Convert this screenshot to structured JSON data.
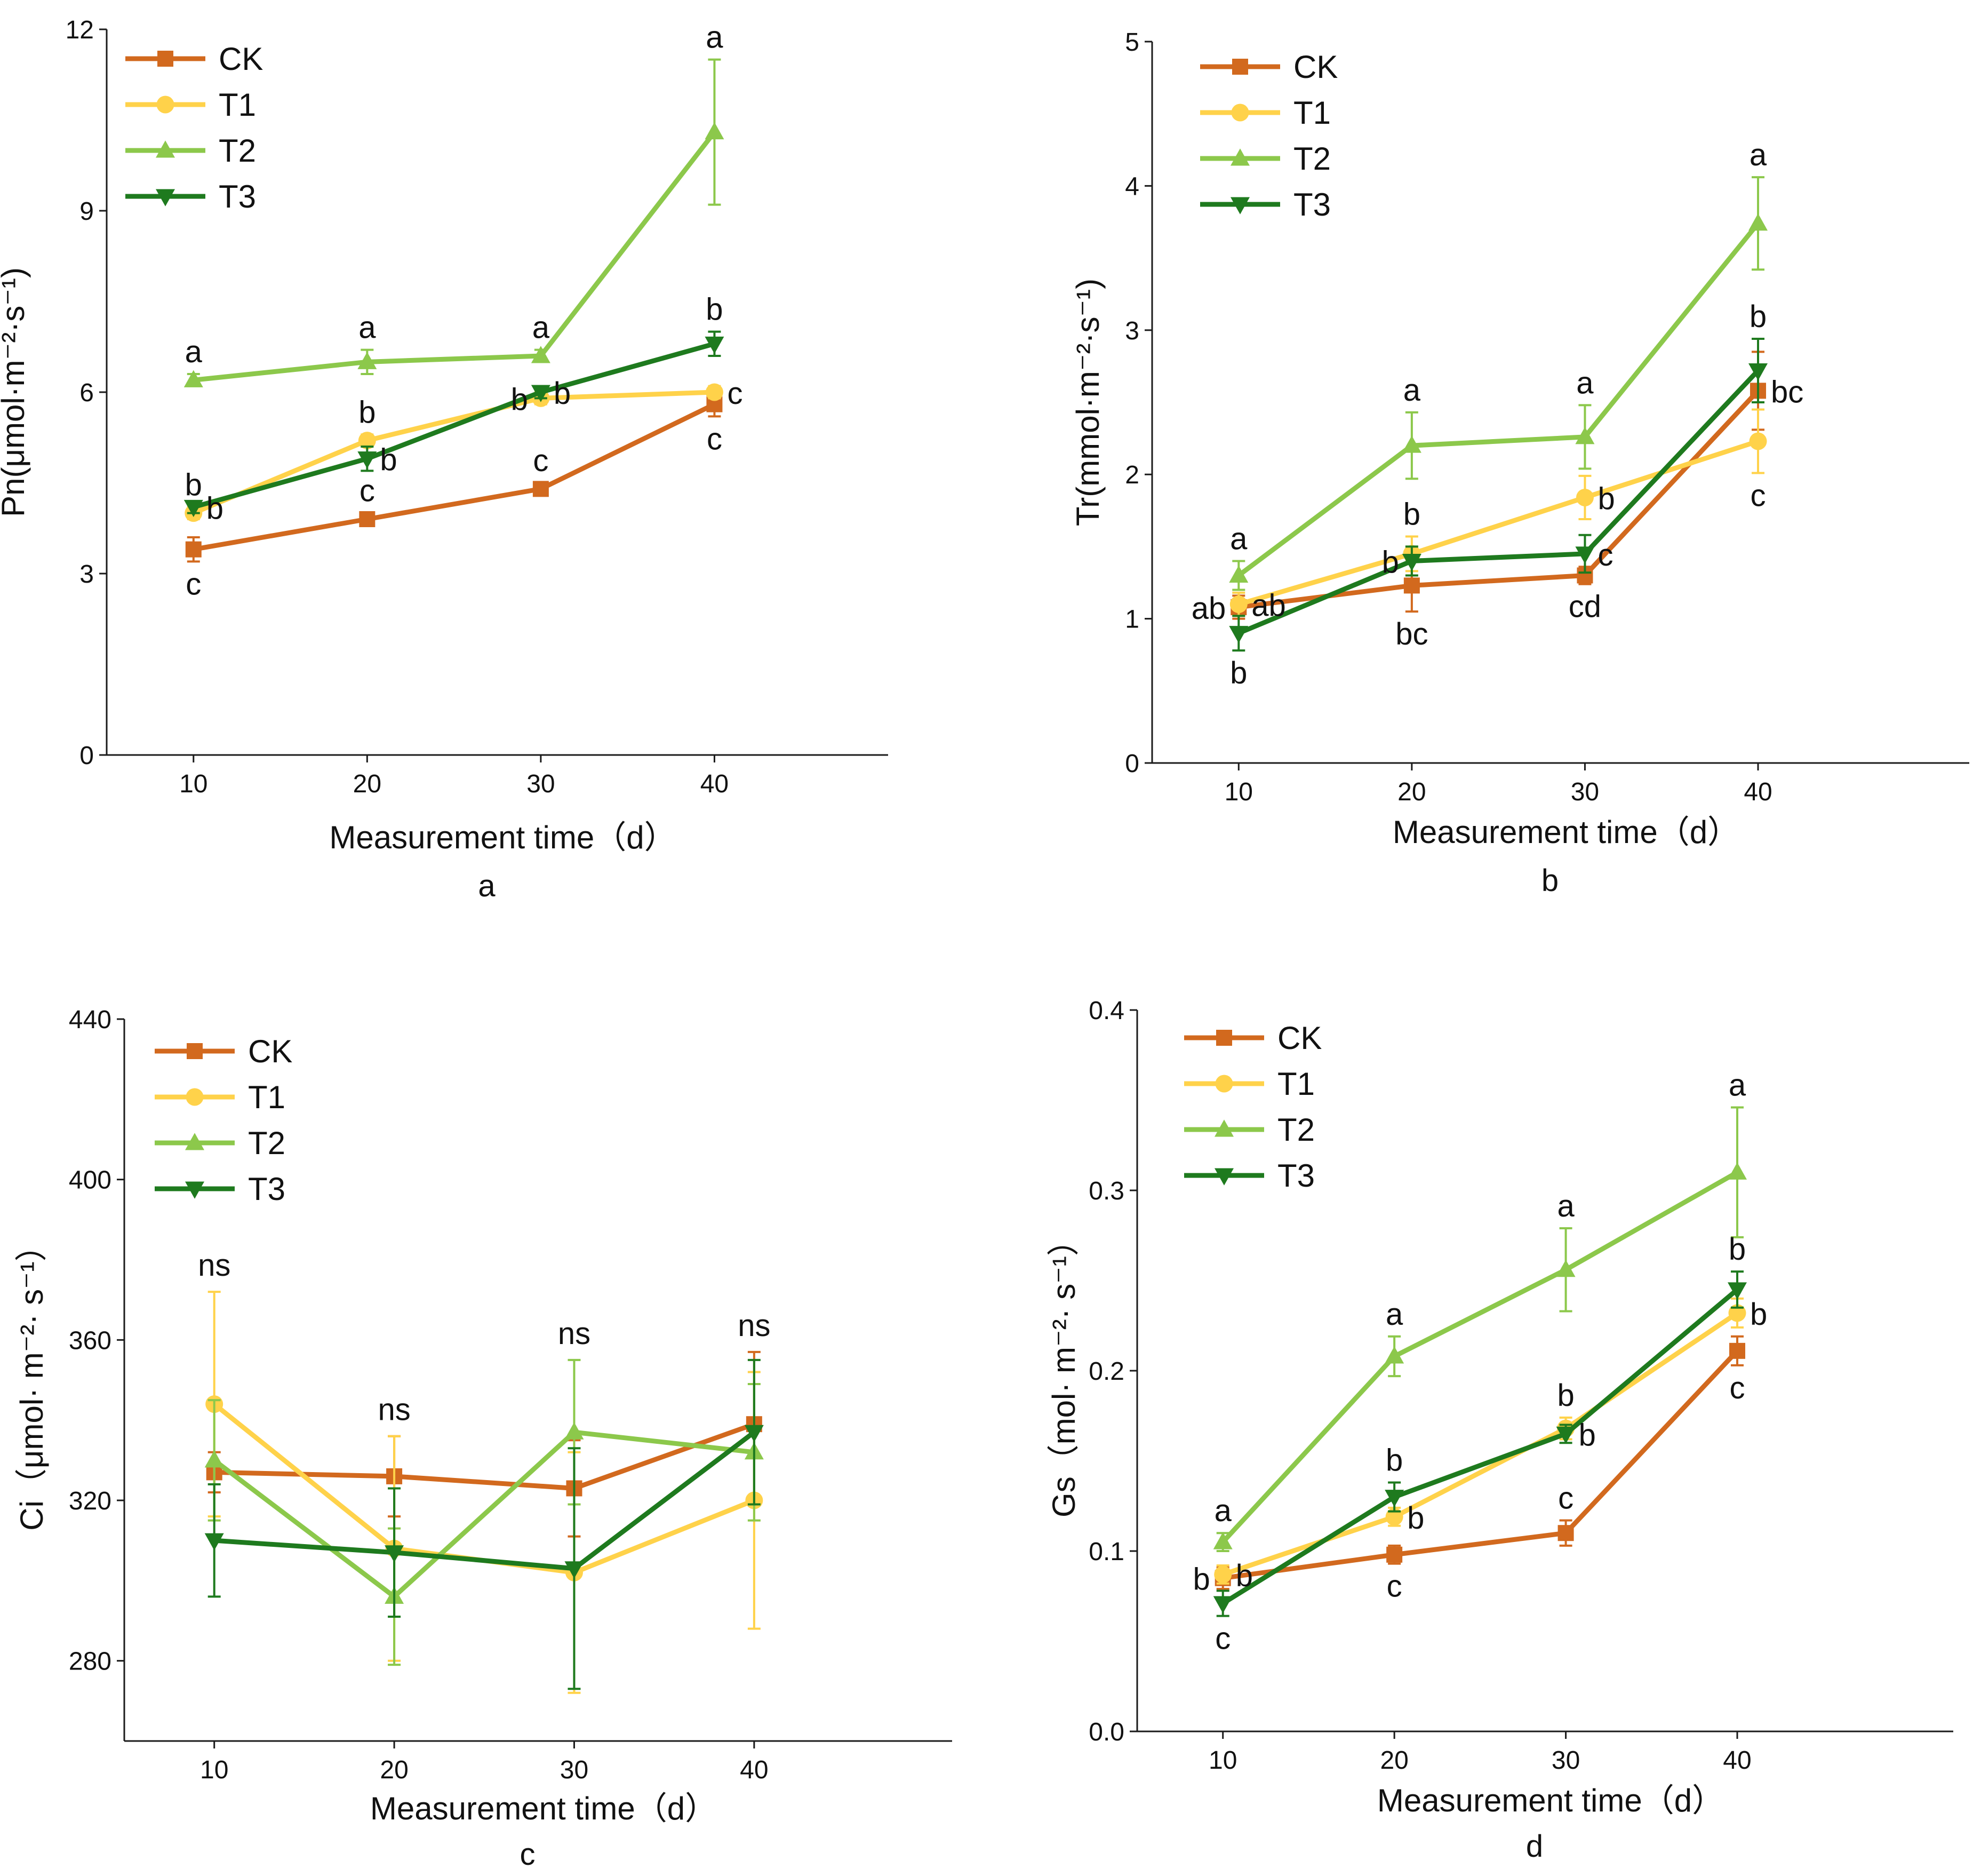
{
  "figure": {
    "series_colors": {
      "CK": "#D2691E",
      "T1": "#FFD24A",
      "T2": "#8CC84B",
      "T3": "#1E7A1E"
    },
    "series_markers": {
      "CK": "square",
      "T1": "circle",
      "T2": "triangle-up",
      "T3": "triangle-down"
    }
  },
  "chart_data": [
    {
      "type": "line",
      "panel_label": "a",
      "xlabel": "Measurement time（d）",
      "ylabel": "Pn(μmol·m⁻²·s⁻¹)",
      "x": [
        10,
        20,
        30,
        40
      ],
      "x_ticks": [
        "10",
        "20",
        "30",
        "40"
      ],
      "ylim": [
        0,
        12
      ],
      "y_ticks": [
        "0",
        "3",
        "6",
        "9",
        "12"
      ],
      "legend_position": "top-left",
      "series": [
        {
          "name": "CK",
          "values": [
            3.4,
            3.9,
            4.4,
            5.8
          ],
          "errors": [
            0.2,
            0.1,
            0.1,
            0.2
          ],
          "labels": [
            "c",
            "c",
            "c",
            "c"
          ]
        },
        {
          "name": "T1",
          "values": [
            4.0,
            5.2,
            5.9,
            6.0
          ],
          "errors": [
            0.1,
            0.1,
            0.1,
            0.1
          ],
          "labels": [
            "b",
            "b",
            "b",
            "c"
          ]
        },
        {
          "name": "T2",
          "values": [
            6.2,
            6.5,
            6.6,
            10.3
          ],
          "errors": [
            0.1,
            0.2,
            0.1,
            1.2
          ],
          "labels": [
            "a",
            "a",
            "a",
            "a"
          ]
        },
        {
          "name": "T3",
          "values": [
            4.1,
            4.9,
            6.0,
            6.8
          ],
          "errors": [
            0.1,
            0.2,
            0.1,
            0.2
          ],
          "labels": [
            "b",
            "b",
            "b",
            "b"
          ]
        }
      ]
    },
    {
      "type": "line",
      "panel_label": "b",
      "xlabel": "Measurement time（d）",
      "ylabel": "Tr(mmol·m⁻²·s⁻¹)",
      "x": [
        10,
        20,
        30,
        40
      ],
      "x_ticks": [
        "10",
        "20",
        "30",
        "40"
      ],
      "ylim": [
        0,
        5
      ],
      "y_ticks": [
        "0",
        "1",
        "2",
        "3",
        "4",
        "5"
      ],
      "legend_position": "top-left",
      "series": [
        {
          "name": "CK",
          "values": [
            1.08,
            1.23,
            1.3,
            2.58
          ],
          "errors": [
            0.08,
            0.18,
            0.06,
            0.27
          ],
          "labels": [
            "ab",
            "bc",
            "cd",
            "bc"
          ]
        },
        {
          "name": "T1",
          "values": [
            1.1,
            1.45,
            1.84,
            2.23
          ],
          "errors": [
            0.08,
            0.12,
            0.15,
            0.22
          ],
          "labels": [
            "ab",
            "b",
            "b",
            "c"
          ]
        },
        {
          "name": "T2",
          "values": [
            1.3,
            2.2,
            2.26,
            3.74
          ],
          "errors": [
            0.1,
            0.23,
            0.22,
            0.32
          ],
          "labels": [
            "a",
            "a",
            "a",
            "a"
          ]
        },
        {
          "name": "T3",
          "values": [
            0.9,
            1.4,
            1.45,
            2.72
          ],
          "errors": [
            0.12,
            0.1,
            0.13,
            0.22
          ],
          "labels": [
            "b",
            "b",
            "c",
            "b"
          ]
        }
      ]
    },
    {
      "type": "line",
      "panel_label": "c",
      "xlabel": "Measurement time（d）",
      "ylabel": "Ci（μmol· m⁻²· s⁻¹）",
      "x": [
        10,
        20,
        30,
        40
      ],
      "x_ticks": [
        "10",
        "20",
        "30",
        "40"
      ],
      "ylim": [
        260,
        440
      ],
      "y_ticks": [
        "280",
        "320",
        "360",
        "400",
        "440"
      ],
      "legend_position": "top-left",
      "group_labels": [
        "ns",
        "ns",
        "ns",
        "ns"
      ],
      "series": [
        {
          "name": "CK",
          "values": [
            327,
            326,
            323,
            339
          ],
          "errors": [
            5,
            10,
            12,
            18
          ]
        },
        {
          "name": "T1",
          "values": [
            344,
            308,
            302,
            320
          ],
          "errors": [
            28,
            28,
            30,
            32
          ]
        },
        {
          "name": "T2",
          "values": [
            330,
            296,
            337,
            332
          ],
          "errors": [
            15,
            17,
            18,
            17
          ]
        },
        {
          "name": "T3",
          "values": [
            310,
            307,
            303,
            337
          ],
          "errors": [
            14,
            16,
            30,
            18
          ]
        }
      ]
    },
    {
      "type": "line",
      "panel_label": "d",
      "xlabel": "Measurement time（d）",
      "ylabel": "Gs（mol· m⁻²· s⁻¹）",
      "x": [
        10,
        20,
        30,
        40
      ],
      "x_ticks": [
        "10",
        "20",
        "30",
        "40"
      ],
      "ylim": [
        0,
        0.4
      ],
      "y_ticks": [
        "0.0",
        "0.1",
        "0.2",
        "0.3",
        "0.4"
      ],
      "legend_position": "top-left",
      "series": [
        {
          "name": "CK",
          "values": [
            0.085,
            0.098,
            0.11,
            0.211
          ],
          "errors": [
            0.006,
            0.005,
            0.007,
            0.008
          ],
          "labels": [
            "b",
            "c",
            "c",
            "c"
          ]
        },
        {
          "name": "T1",
          "values": [
            0.087,
            0.119,
            0.168,
            0.232
          ],
          "errors": [
            0.005,
            0.005,
            0.006,
            0.008
          ],
          "labels": [
            "b",
            "b",
            "b",
            "b"
          ]
        },
        {
          "name": "T2",
          "values": [
            0.105,
            0.208,
            0.256,
            0.31
          ],
          "errors": [
            0.005,
            0.011,
            0.023,
            0.036
          ],
          "labels": [
            "a",
            "a",
            "a",
            "a"
          ]
        },
        {
          "name": "T3",
          "values": [
            0.071,
            0.13,
            0.165,
            0.245
          ],
          "errors": [
            0.007,
            0.008,
            0.005,
            0.01
          ],
          "labels": [
            "c",
            "b",
            "b",
            "b"
          ]
        }
      ]
    }
  ]
}
